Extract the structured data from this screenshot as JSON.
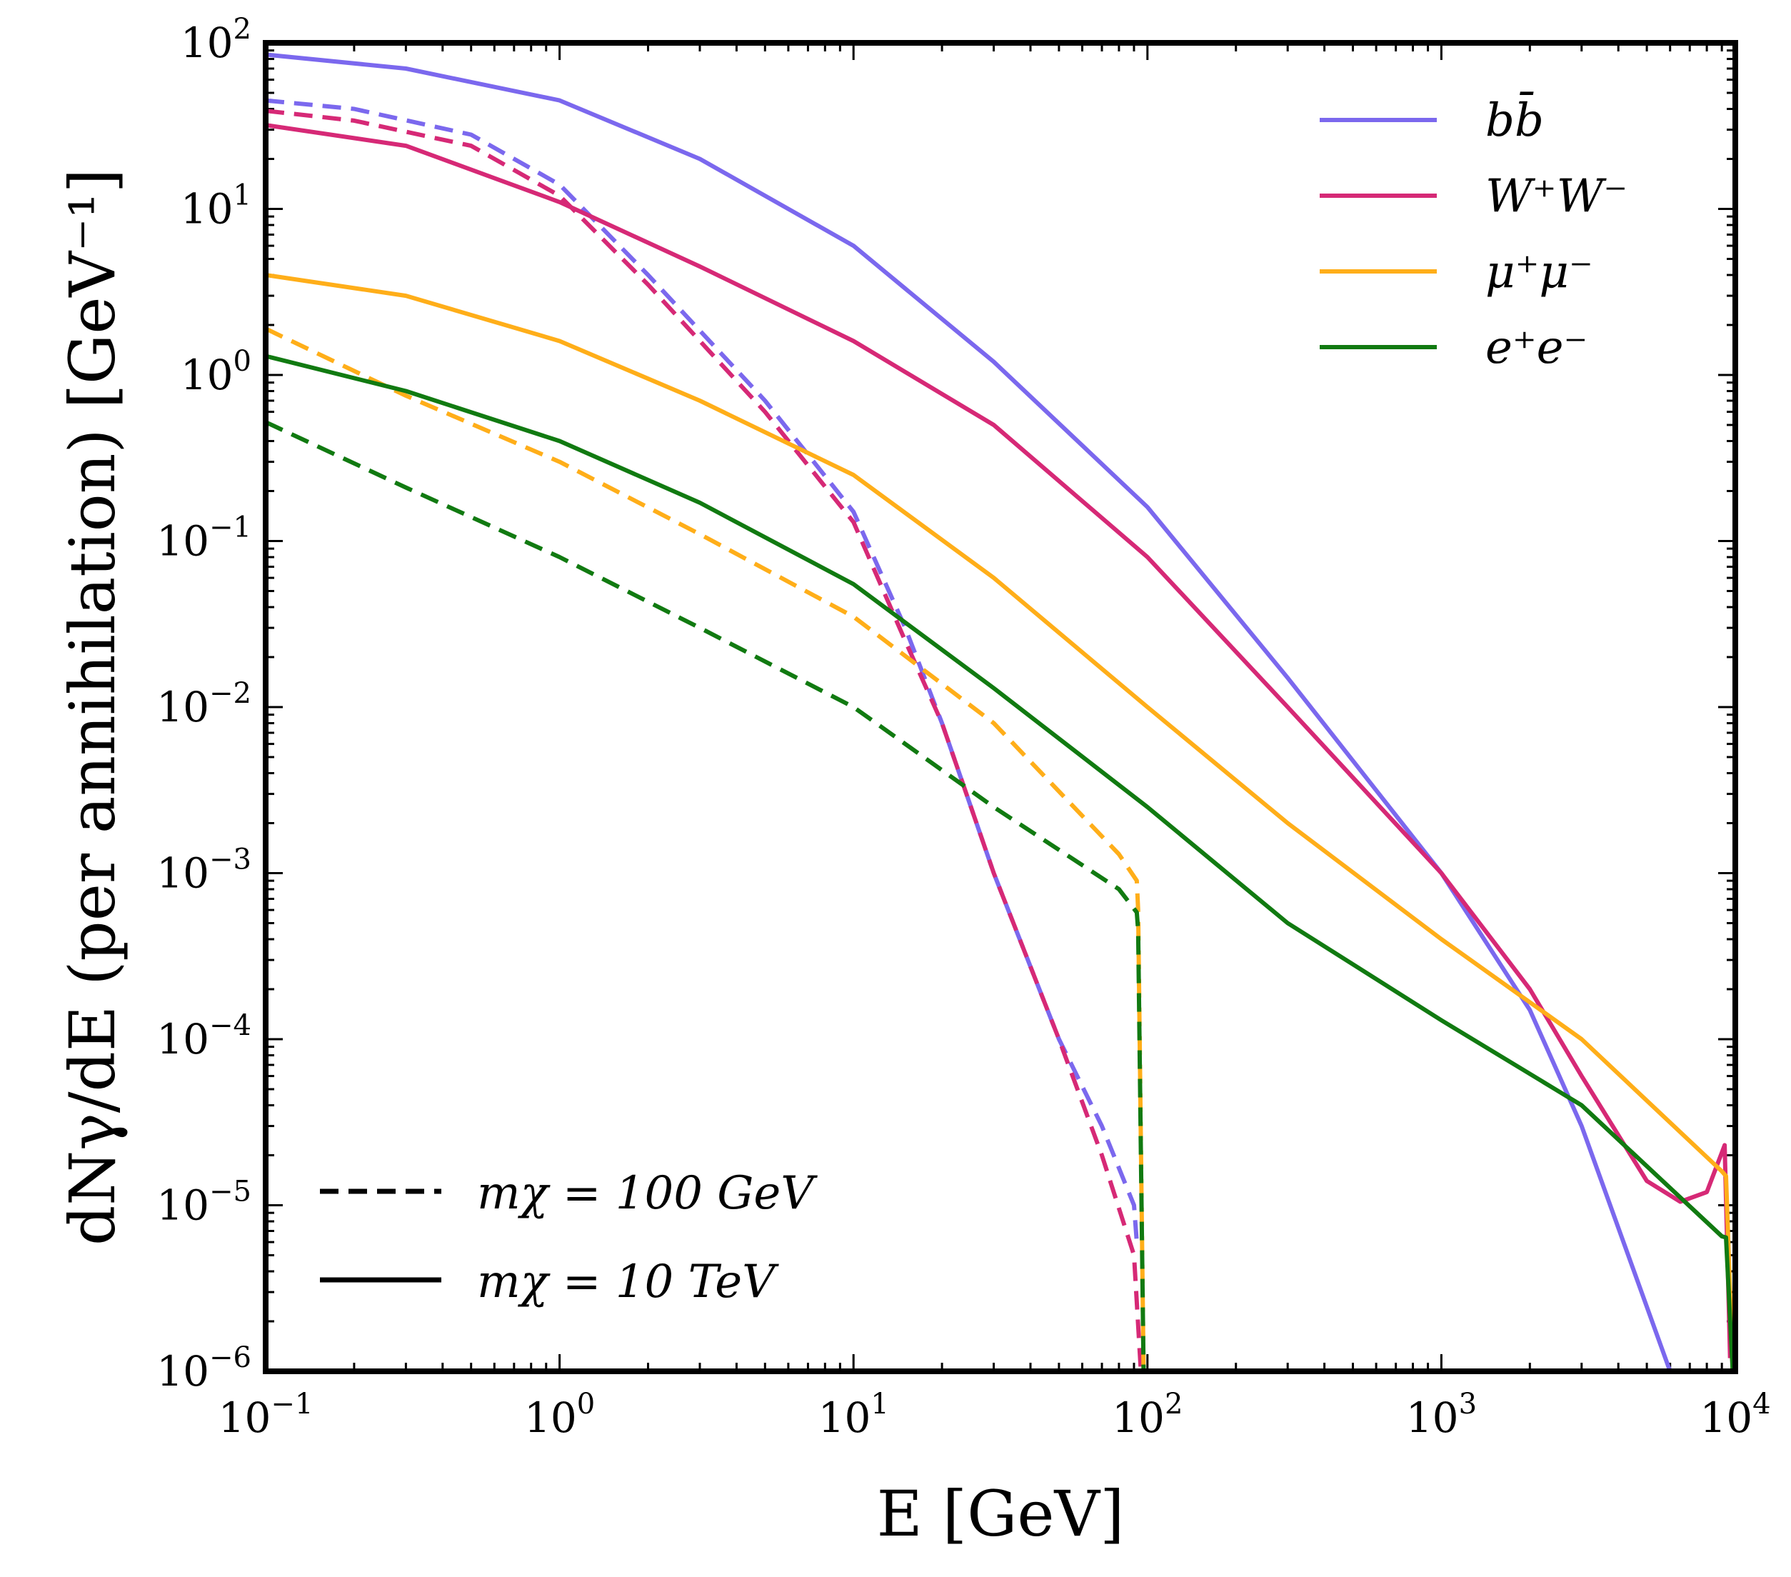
{
  "chart_data": {
    "type": "line",
    "x_scale": "log",
    "y_scale": "log",
    "xlim": [
      0.1,
      10000
    ],
    "ylim": [
      1e-06,
      100
    ],
    "xlabel": "E [GeV]",
    "ylabel": "dNγ/dE (per annihilation) [GeV⁻¹]",
    "x_ticks": [
      {
        "value": 0.1,
        "base": "10",
        "exp": "−1"
      },
      {
        "value": 1,
        "base": "10",
        "exp": "0"
      },
      {
        "value": 10,
        "base": "10",
        "exp": "1"
      },
      {
        "value": 100,
        "base": "10",
        "exp": "2"
      },
      {
        "value": 1000,
        "base": "10",
        "exp": "3"
      },
      {
        "value": 10000,
        "base": "10",
        "exp": "4"
      }
    ],
    "y_ticks": [
      {
        "value": 100,
        "base": "10",
        "exp": "2"
      },
      {
        "value": 10,
        "base": "10",
        "exp": "1"
      },
      {
        "value": 1,
        "base": "10",
        "exp": "0"
      },
      {
        "value": 0.1,
        "base": "10",
        "exp": "−1"
      },
      {
        "value": 0.01,
        "base": "10",
        "exp": "−2"
      },
      {
        "value": 0.001,
        "base": "10",
        "exp": "−3"
      },
      {
        "value": 0.0001,
        "base": "10",
        "exp": "−4"
      },
      {
        "value": 1e-05,
        "base": "10",
        "exp": "−5"
      },
      {
        "value": 1e-06,
        "base": "10",
        "exp": "−6"
      }
    ],
    "channel_legend": [
      {
        "label": "bb̄",
        "color": "#7b68ee"
      },
      {
        "label": "W⁺W⁻",
        "color": "#d62976"
      },
      {
        "label": "μ⁺μ⁻",
        "color": "#ffae19"
      },
      {
        "label": "e⁺e⁻",
        "color": "#117a11"
      }
    ],
    "mass_legend": [
      {
        "label": "mχ = 100 GeV",
        "style": "dashed"
      },
      {
        "label": "mχ = 10 TeV",
        "style": "solid"
      }
    ],
    "series": [
      {
        "name": "bb̄, mχ = 10 TeV",
        "color": "#7b68ee",
        "style": "solid",
        "x": [
          0.1,
          0.3,
          1,
          3,
          10,
          30,
          100,
          300,
          1000,
          2000,
          3000,
          6000
        ],
        "y": [
          85,
          70,
          45,
          20,
          6,
          1.2,
          0.16,
          0.015,
          0.001,
          0.00015,
          3e-05,
          1e-06
        ]
      },
      {
        "name": "bb̄, mχ = 100 GeV",
        "color": "#7b68ee",
        "style": "dashed",
        "x": [
          0.1,
          0.2,
          0.5,
          1,
          2,
          5,
          10,
          15,
          20,
          30,
          50,
          70,
          90,
          92
        ],
        "y": [
          45,
          40,
          28,
          14,
          4,
          0.7,
          0.15,
          0.03,
          0.008,
          0.001,
          0.0001,
          3e-05,
          1e-05,
          6e-06
        ]
      },
      {
        "name": "W⁺W⁻, mχ = 10 TeV",
        "color": "#d62976",
        "style": "solid",
        "x": [
          0.1,
          0.3,
          1,
          3,
          10,
          30,
          100,
          300,
          1000,
          2000,
          3000,
          5000,
          6500,
          8000,
          9200,
          9600
        ],
        "y": [
          32,
          24,
          11,
          4.5,
          1.6,
          0.5,
          0.08,
          0.01,
          0.001,
          0.0002,
          6e-05,
          1.4e-05,
          1.05e-05,
          1.2e-05,
          2.3e-05,
          1.2e-06
        ]
      },
      {
        "name": "W⁺W⁻, mχ = 100 GeV",
        "color": "#d62976",
        "style": "dashed",
        "x": [
          0.1,
          0.2,
          0.5,
          1,
          2,
          5,
          10,
          15,
          20,
          30,
          50,
          70,
          90,
          95
        ],
        "y": [
          39,
          34,
          24,
          12,
          3.5,
          0.6,
          0.13,
          0.025,
          0.008,
          0.001,
          0.0001,
          2e-05,
          5e-06,
          1e-06
        ]
      },
      {
        "name": "μ⁺μ⁻, mχ = 10 TeV",
        "color": "#ffae19",
        "style": "solid",
        "x": [
          0.1,
          0.3,
          1,
          3,
          10,
          30,
          100,
          300,
          1000,
          3000,
          9000,
          9300,
          9800
        ],
        "y": [
          4,
          3,
          1.6,
          0.7,
          0.25,
          0.06,
          0.01,
          0.002,
          0.0004,
          0.0001,
          1.6e-05,
          1.5e-05,
          1e-06
        ]
      },
      {
        "name": "μ⁺μ⁻, mχ = 100 GeV",
        "color": "#ffae19",
        "style": "dashed",
        "x": [
          0.1,
          0.3,
          1,
          3,
          10,
          30,
          80,
          92,
          93,
          97
        ],
        "y": [
          1.9,
          0.75,
          0.3,
          0.11,
          0.035,
          0.008,
          0.0013,
          0.0009,
          0.0006,
          1e-06
        ]
      },
      {
        "name": "e⁺e⁻, mχ = 10 TeV",
        "color": "#117a11",
        "style": "solid",
        "x": [
          0.1,
          0.3,
          1,
          3,
          10,
          30,
          100,
          300,
          1000,
          3000,
          9000,
          9300,
          9800
        ],
        "y": [
          1.3,
          0.8,
          0.4,
          0.17,
          0.055,
          0.013,
          0.0025,
          0.0005,
          0.00013,
          4e-05,
          6.5e-06,
          6.4e-06,
          1e-06
        ]
      },
      {
        "name": "e⁺e⁻, mχ = 100 GeV",
        "color": "#117a11",
        "style": "dashed",
        "x": [
          0.1,
          0.3,
          1,
          3,
          10,
          30,
          80,
          92,
          93,
          97
        ],
        "y": [
          0.52,
          0.21,
          0.08,
          0.03,
          0.01,
          0.0025,
          0.0008,
          0.00058,
          0.00045,
          1e-06
        ]
      }
    ]
  }
}
